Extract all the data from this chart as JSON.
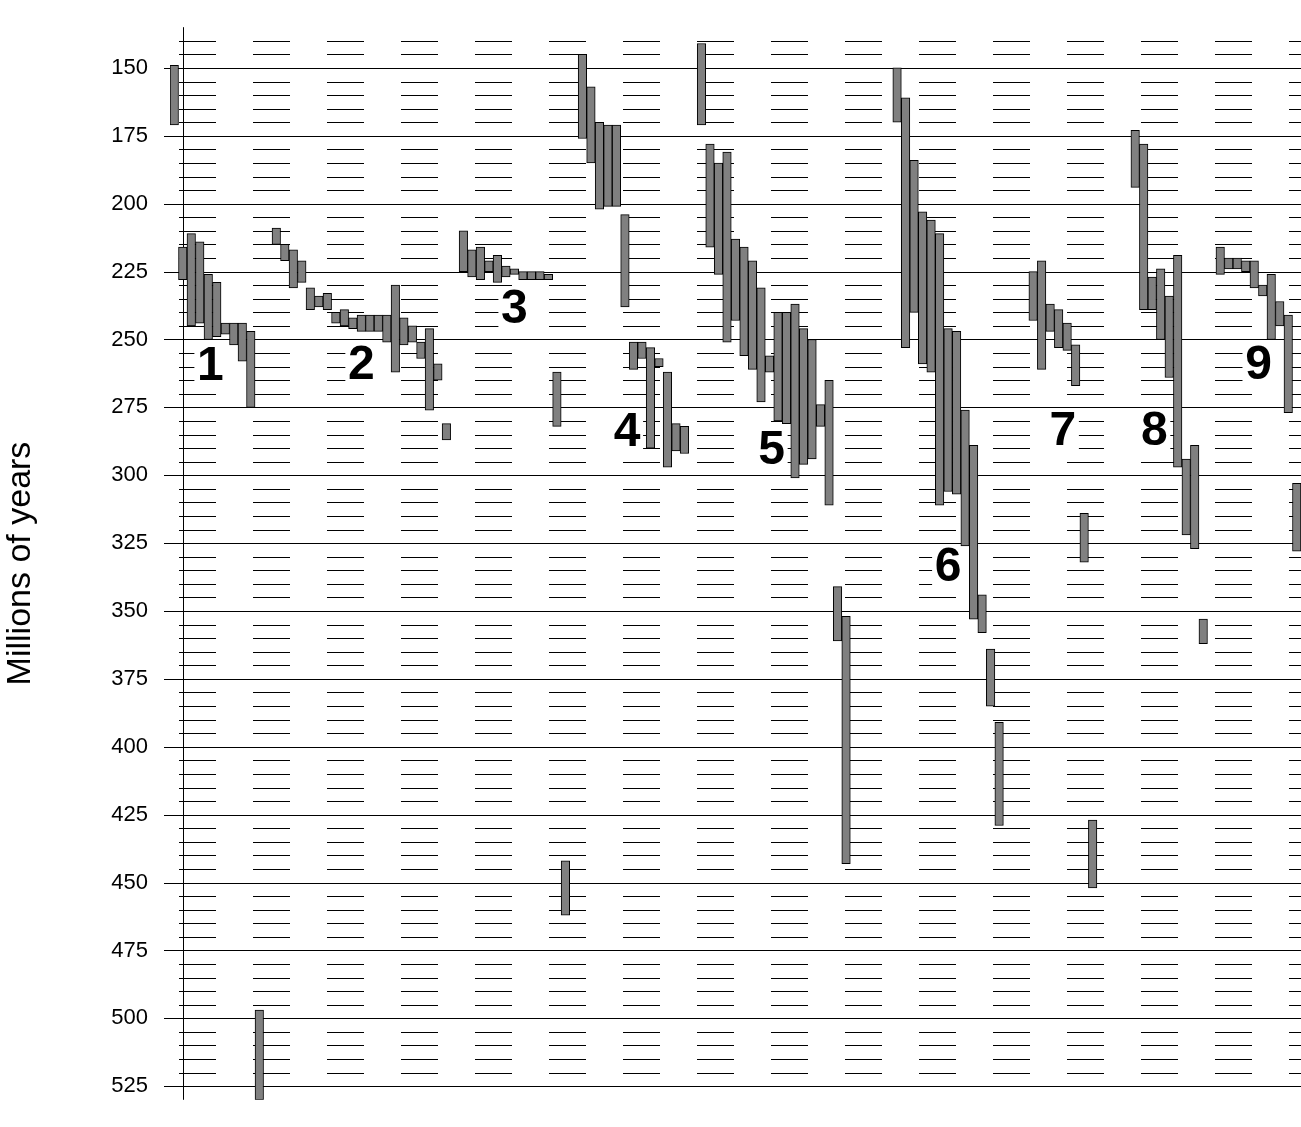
{
  "chart_data": {
    "type": "bar",
    "ylabel": "Millions of years",
    "categories": [
      null,
      null,
      null,
      null,
      null,
      null,
      null,
      null,
      null,
      null,
      null,
      null,
      null,
      null,
      null,
      null,
      null,
      null,
      null,
      null,
      null,
      null,
      null,
      null,
      null,
      null,
      null,
      null,
      null,
      null,
      null,
      null,
      null,
      null,
      null,
      null,
      null,
      null,
      null,
      null,
      null,
      null,
      null,
      null,
      null,
      null,
      null,
      null,
      null,
      null,
      null,
      null,
      null,
      null,
      null,
      null,
      null,
      null,
      null,
      null,
      null,
      null,
      null,
      null,
      null,
      null,
      null,
      null,
      null,
      null,
      null,
      null,
      null,
      null,
      null,
      null,
      null,
      null,
      null,
      null,
      null,
      null,
      null,
      null,
      null,
      null,
      null,
      null,
      null,
      null,
      null,
      null,
      null,
      null,
      null,
      null,
      null,
      null,
      null,
      null,
      null,
      null,
      null,
      null,
      null,
      null,
      null,
      null,
      null,
      null,
      null,
      null,
      null,
      null,
      null,
      null,
      null,
      null,
      null,
      null,
      null,
      null,
      null,
      null,
      null,
      null,
      null,
      null,
      null,
      null,
      null,
      null,
      null
    ],
    "base": [
      149,
      216,
      211,
      214,
      226,
      229,
      244,
      244,
      244,
      247,
      497,
      null,
      209,
      215,
      217,
      221,
      231,
      234,
      233,
      240,
      239,
      242,
      241,
      241,
      241,
      241,
      230,
      242,
      245,
      251,
      246,
      259,
      281,
      null,
      210,
      217,
      216,
      221,
      219,
      223,
      224,
      225,
      225,
      225,
      226,
      262,
      442,
      null,
      145,
      157,
      170,
      171,
      171,
      204,
      251,
      251,
      253,
      257,
      262,
      281,
      282,
      null,
      141,
      178,
      185,
      181,
      213,
      216,
      221,
      231,
      256,
      240,
      240,
      237,
      246,
      250,
      274,
      265,
      341,
      352,
      null,
      null,
      null,
      null,
      null,
      150,
      161,
      184,
      203,
      206,
      211,
      246,
      247,
      276,
      289,
      344,
      364,
      391,
      null,
      null,
      null,
      225,
      221,
      237,
      239,
      244,
      252,
      314,
      427,
      null,
      null,
      null,
      null,
      173,
      178,
      227,
      224,
      234,
      219,
      294,
      289,
      353,
      null,
      216,
      220,
      220,
      221,
      221,
      230,
      226,
      236,
      241,
      303
    ],
    "values": [
      22,
      12,
      34,
      30,
      24,
      20,
      4,
      8,
      14,
      28,
      33,
      null,
      6,
      6,
      14,
      8,
      8,
      4,
      6,
      4,
      6,
      4,
      6,
      6,
      6,
      10,
      32,
      10,
      6,
      6,
      30,
      6,
      6,
      null,
      15,
      10,
      12,
      4,
      10,
      4,
      2,
      3,
      3,
      3,
      2,
      20,
      20,
      null,
      31,
      28,
      32,
      30,
      30,
      34,
      10,
      6,
      37,
      3,
      35,
      10,
      10,
      null,
      30,
      38,
      41,
      70,
      30,
      40,
      40,
      42,
      6,
      40,
      41,
      64,
      50,
      44,
      8,
      46,
      20,
      91,
      null,
      null,
      null,
      null,
      null,
      20,
      92,
      56,
      56,
      56,
      100,
      60,
      60,
      50,
      64,
      14,
      21,
      38,
      null,
      null,
      null,
      18,
      40,
      10,
      14,
      10,
      15,
      18,
      25,
      null,
      null,
      null,
      null,
      21,
      61,
      12,
      26,
      30,
      78,
      28,
      38,
      9,
      null,
      10,
      4,
      4,
      4,
      10,
      4,
      24,
      9,
      36,
      25
    ],
    "color": "#808080",
    "ylim": [
      530,
      135
    ],
    "yticks": [
      {
        "value": 140,
        "label": null
      },
      {
        "value": 145,
        "label": null
      },
      150,
      {
        "value": 155,
        "label": null
      },
      {
        "value": 160,
        "label": null
      },
      {
        "value": 165,
        "label": null
      },
      {
        "value": 170,
        "label": null
      },
      175,
      {
        "value": 180,
        "label": null
      },
      {
        "value": 185,
        "label": null
      },
      {
        "value": 190,
        "label": null
      },
      {
        "value": 195,
        "label": null
      },
      200,
      {
        "value": 205,
        "label": null
      },
      {
        "value": 210,
        "label": null
      },
      {
        "value": 215,
        "label": null
      },
      {
        "value": 220,
        "label": null
      },
      225,
      {
        "value": 230,
        "label": null
      },
      {
        "value": 235,
        "label": null
      },
      {
        "value": 240,
        "label": null
      },
      {
        "value": 245,
        "label": null
      },
      250,
      {
        "value": 255,
        "label": null
      },
      {
        "value": 260,
        "label": null
      },
      {
        "value": 265,
        "label": null
      },
      {
        "value": 270,
        "label": null
      },
      275,
      {
        "value": 280,
        "label": null
      },
      {
        "value": 285,
        "label": null
      },
      {
        "value": 290,
        "label": null
      },
      {
        "value": 295,
        "label": null
      },
      300,
      {
        "value": 305,
        "label": null
      },
      {
        "value": 310,
        "label": null
      },
      {
        "value": 315,
        "label": null
      },
      {
        "value": 320,
        "label": null
      },
      325,
      {
        "value": 330,
        "label": null
      },
      {
        "value": 335,
        "label": null
      },
      {
        "value": 340,
        "label": null
      },
      {
        "value": 345,
        "label": null
      },
      350,
      {
        "value": 355,
        "label": null
      },
      {
        "value": 360,
        "label": null
      },
      {
        "value": 365,
        "label": null
      },
      {
        "value": 370,
        "label": null
      },
      375,
      {
        "value": 380,
        "label": null
      },
      {
        "value": 385,
        "label": null
      },
      {
        "value": 390,
        "label": null
      },
      {
        "value": 395,
        "label": null
      },
      400,
      {
        "value": 405,
        "label": null
      },
      {
        "value": 410,
        "label": null
      },
      {
        "value": 415,
        "label": null
      },
      {
        "value": 420,
        "label": null
      },
      425,
      {
        "value": 430,
        "label": null
      },
      {
        "value": 435,
        "label": null
      },
      {
        "value": 440,
        "label": null
      },
      {
        "value": 445,
        "label": null
      },
      450,
      {
        "value": 455,
        "label": null
      },
      {
        "value": 460,
        "label": null
      },
      {
        "value": 465,
        "label": null
      },
      {
        "value": 470,
        "label": null
      },
      475,
      {
        "value": 480,
        "label": null
      },
      {
        "value": 485,
        "label": null
      },
      {
        "value": 490,
        "label": null
      },
      {
        "value": 495,
        "label": null
      },
      500,
      {
        "value": 505,
        "label": null
      },
      {
        "value": 510,
        "label": null
      },
      {
        "value": 515,
        "label": null
      },
      {
        "value": 520,
        "label": null
      },
      525
    ],
    "grid": "y",
    "annotations": [
      "1",
      "2",
      "3",
      "4",
      "5",
      "6",
      "7",
      "8",
      "9"
    ]
  }
}
